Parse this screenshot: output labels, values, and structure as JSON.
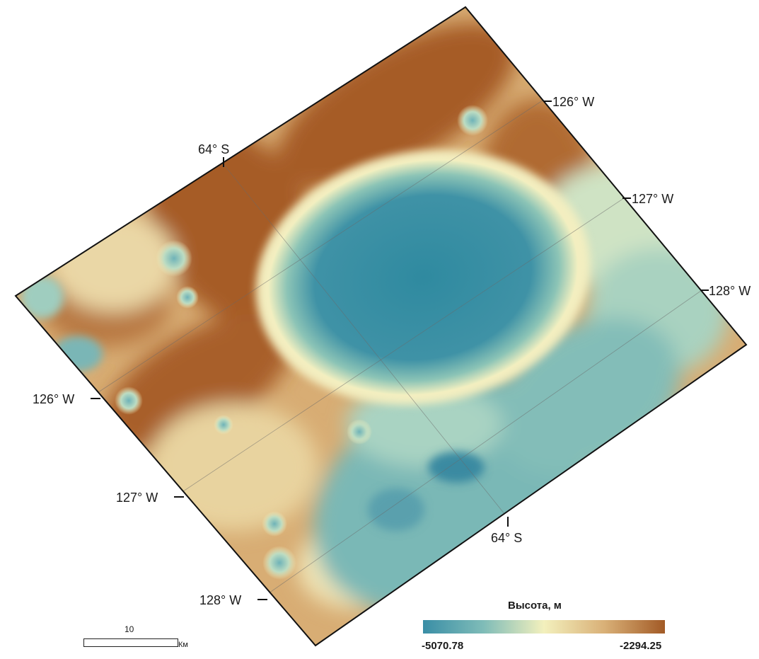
{
  "map": {
    "coordinate_labels": {
      "lat_top": "64° S",
      "lat_bottom": "64° S",
      "lon_right_126": "126° W",
      "lon_right_127": "127° W",
      "lon_right_128": "128° W",
      "lon_left_126": "126° W",
      "lon_left_127": "127° W",
      "lon_left_128": "128° W"
    },
    "colors": {
      "low": "#3a8ea6",
      "mid": "#f3f0bd",
      "high": "#a25a26"
    }
  },
  "legend": {
    "title": "Высота, м",
    "min_label": "-5070.78",
    "max_label": "-2294.25"
  },
  "scale_bar": {
    "value": "10",
    "unit": "Км"
  }
}
